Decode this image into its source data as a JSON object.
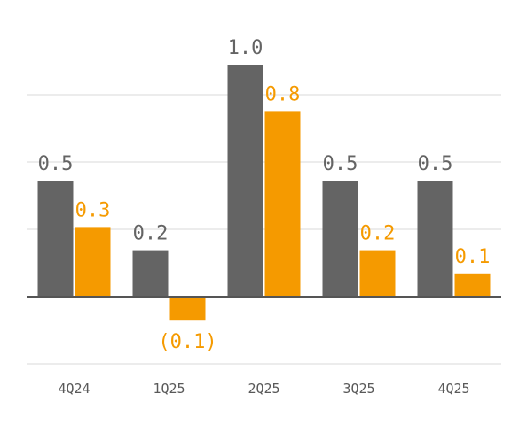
{
  "chart_data": {
    "type": "bar",
    "categories": [
      "4Q24",
      "1Q25",
      "2Q25",
      "3Q25",
      "4Q25"
    ],
    "series": [
      {
        "color": "#646464",
        "values": [
          0.5,
          0.2,
          1.0,
          0.5,
          0.5
        ],
        "labels": [
          "0.5",
          "0.2",
          "1.0",
          "0.5",
          "0.5"
        ]
      },
      {
        "color": "#F59A00",
        "values": [
          0.3,
          -0.1,
          0.8,
          0.2,
          0.1
        ],
        "labels": [
          "0.3",
          "(0.1)",
          "0.8",
          "0.2",
          "0.1"
        ]
      }
    ],
    "ylim": [
      -0.4,
      1.0
    ],
    "grid": true,
    "legend": "none",
    "title": "",
    "xlabel": "",
    "ylabel": ""
  }
}
